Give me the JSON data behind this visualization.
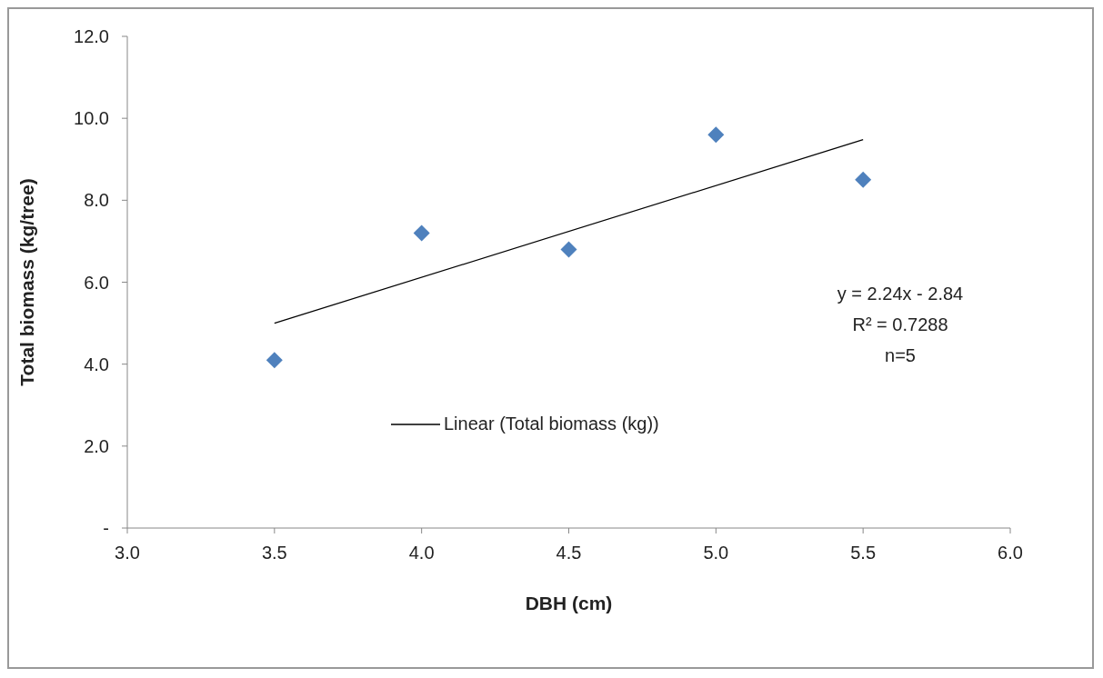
{
  "chart_data": {
    "type": "scatter",
    "xlabel": "DBH (cm)",
    "ylabel": "Total biomass (kg/tree)",
    "xlim": [
      3,
      6
    ],
    "xticks": [
      {
        "value": 3,
        "label": "3.0"
      },
      {
        "value": 3.5,
        "label": "3.5"
      },
      {
        "value": 4,
        "label": "4.0"
      },
      {
        "value": 4.5,
        "label": "4.5"
      },
      {
        "value": 5,
        "label": "5.0"
      },
      {
        "value": 5.5,
        "label": "5.5"
      },
      {
        "value": 6,
        "label": "6.0"
      }
    ],
    "ylim": [
      0,
      12
    ],
    "yticks": [
      {
        "value": 0,
        "label": "-"
      },
      {
        "value": 2,
        "label": "2.0"
      },
      {
        "value": 4,
        "label": "4.0"
      },
      {
        "value": 6,
        "label": "6.0"
      },
      {
        "value": 8,
        "label": "8.0"
      },
      {
        "value": 10,
        "label": "10.0"
      },
      {
        "value": 12,
        "label": "12.0"
      }
    ],
    "legend": "bottom",
    "marker": "diamond",
    "series": [
      {
        "color": "#4f81bd",
        "x": [
          3.5,
          4,
          4.5,
          5,
          5.5
        ],
        "values": [
          4.1,
          7.2,
          6.8,
          9.6,
          8.5
        ]
      },
      {
        "type": "line",
        "name": "Linear (Total biomass (kg))",
        "color": "#000000",
        "marker": "none",
        "line_style": "solid",
        "x": [
          3.5,
          5.5
        ],
        "values": [
          5.0,
          9.48
        ]
      }
    ],
    "annotations": [
      "y = 2.24x - 2.84",
      "R² = 0.7288",
      "n=5"
    ]
  }
}
